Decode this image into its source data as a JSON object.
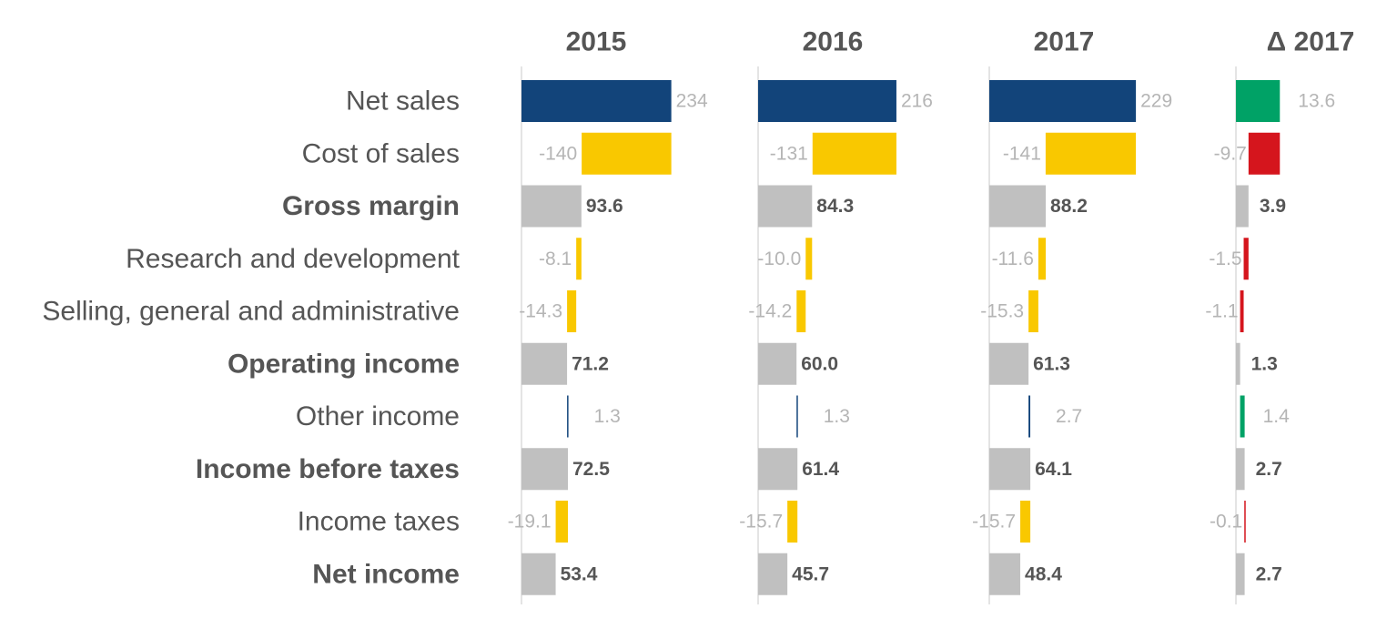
{
  "chart_data": {
    "type": "bar",
    "categories": [
      "Net sales",
      "Cost of sales",
      "Gross margin",
      "Research and development",
      "Selling, general and administrative",
      "Operating income",
      "Other income",
      "Income before taxes",
      "Income taxes",
      "Net income"
    ],
    "totals": [
      false,
      false,
      true,
      false,
      false,
      true,
      false,
      true,
      false,
      true
    ],
    "series": [
      {
        "name": "2015",
        "chart": "waterfall",
        "values": [
          234,
          -140,
          93.6,
          -8.1,
          -14.3,
          71.2,
          1.3,
          72.5,
          -19.1,
          53.4
        ],
        "labels": [
          "234",
          "-140",
          "93.6",
          "-8.1",
          "-14.3",
          "71.2",
          "1.3",
          "72.5",
          "-19.1",
          "53.4"
        ]
      },
      {
        "name": "2016",
        "chart": "waterfall",
        "values": [
          216,
          -131,
          84.3,
          -10.0,
          -14.2,
          60.0,
          1.3,
          61.4,
          -15.7,
          45.7
        ],
        "labels": [
          "216",
          "-131",
          "84.3",
          "-10.0",
          "-14.2",
          "60.0",
          "1.3",
          "61.4",
          "-15.7",
          "45.7"
        ]
      },
      {
        "name": "2017",
        "chart": "waterfall",
        "values": [
          229,
          -141,
          88.2,
          -11.6,
          -15.3,
          61.3,
          2.7,
          64.1,
          -15.7,
          48.4
        ],
        "labels": [
          "229",
          "-141",
          "88.2",
          "-11.6",
          "-15.3",
          "61.3",
          "2.7",
          "64.1",
          "-15.7",
          "48.4"
        ]
      },
      {
        "name": "Δ 2017",
        "chart": "variance",
        "values": [
          13.6,
          -9.7,
          3.9,
          -1.5,
          -1.1,
          1.3,
          1.4,
          2.7,
          -0.1,
          2.7
        ],
        "labels": [
          "13.6",
          "-9.7",
          "3.9",
          "-1.5",
          "-1.1",
          "1.3",
          "1.4",
          "2.7",
          "-0.1",
          "2.7"
        ]
      }
    ],
    "colors": {
      "start": "#12447a",
      "positive": "#12447a",
      "negative": "#f9c800",
      "total": "#c0c0c0",
      "variance_positive": "#00a266",
      "variance_negative": "#d5151d",
      "variance_total": "#c0c0c0",
      "label": "#b5b5b5",
      "total_label": "#555555"
    },
    "grid": false,
    "legend": "none"
  }
}
